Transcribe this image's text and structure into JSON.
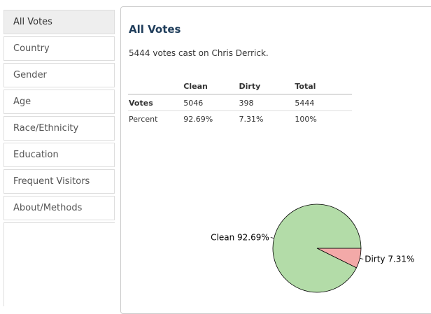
{
  "sidebar": {
    "items": [
      {
        "label": "All Votes",
        "active": true
      },
      {
        "label": "Country",
        "active": false
      },
      {
        "label": "Gender",
        "active": false
      },
      {
        "label": "Age",
        "active": false
      },
      {
        "label": "Race/Ethnicity",
        "active": false
      },
      {
        "label": "Education",
        "active": false
      },
      {
        "label": "Frequent Visitors",
        "active": false
      },
      {
        "label": "About/Methods",
        "active": false
      }
    ]
  },
  "main": {
    "title": "All Votes",
    "summary": {
      "count": "5444",
      "text": " votes cast on Chris Derrick."
    },
    "table": {
      "headers": [
        "",
        "Clean",
        "Dirty",
        "Total"
      ],
      "rows": [
        {
          "label": "Votes",
          "values": [
            "5046",
            "398",
            "5444"
          ]
        },
        {
          "label": "Percent",
          "values": [
            "92.69%",
            "7.31%",
            "100%"
          ]
        }
      ]
    }
  },
  "chart_data": {
    "type": "pie",
    "slices": [
      {
        "label": "Clean 92.69%",
        "name": "Clean",
        "value": 92.69,
        "color": "#b3dca8"
      },
      {
        "label": "Dirty 7.31%",
        "name": "Dirty",
        "value": 7.31,
        "color": "#f3a9a8"
      }
    ]
  },
  "colors": {
    "accent_title": "#1f3d5b",
    "border": "#dddddd",
    "active_nav_bg": "#eeeeee"
  }
}
